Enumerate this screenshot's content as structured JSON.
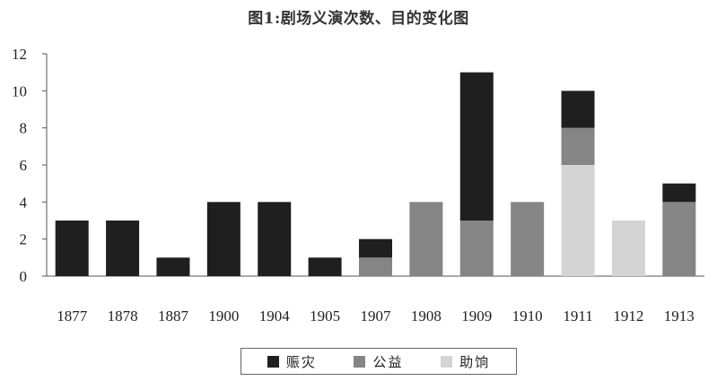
{
  "chart_data": {
    "type": "bar",
    "stacked": true,
    "title": "图1:剧场义演次数、目的变化图",
    "xlabel": "",
    "ylabel": "",
    "ylim": [
      0,
      12
    ],
    "yticks": [
      0,
      2,
      4,
      6,
      8,
      10,
      12
    ],
    "grid": false,
    "legend_position": "bottom",
    "categories": [
      "1877",
      "1878",
      "1887",
      "1900",
      "1904",
      "1905",
      "1907",
      "1908",
      "1909",
      "1910",
      "1911",
      "1912",
      "1913"
    ],
    "series": [
      {
        "name": "助饷",
        "color": "#d4d4d4",
        "values": [
          0,
          0,
          0,
          0,
          0,
          0,
          0,
          0,
          0,
          0,
          6,
          3,
          0
        ]
      },
      {
        "name": "公益",
        "color": "#858585",
        "values": [
          0,
          0,
          0,
          0,
          0,
          0,
          1,
          4,
          3,
          4,
          2,
          0,
          4
        ]
      },
      {
        "name": "赈灾",
        "color": "#1f1f1f",
        "values": [
          3,
          3,
          1,
          4,
          4,
          1,
          1,
          0,
          8,
          0,
          2,
          0,
          1
        ]
      }
    ],
    "legend_order": [
      "赈灾",
      "公益",
      "助饷"
    ]
  }
}
